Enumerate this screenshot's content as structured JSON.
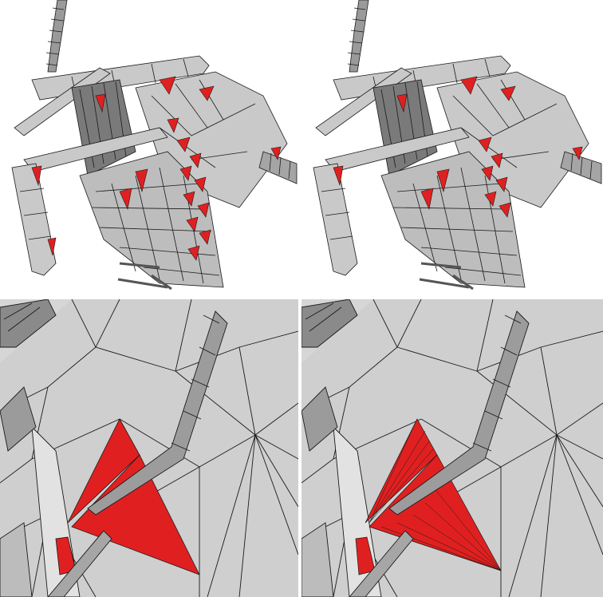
{
  "figure": {
    "panels": [
      {
        "id": "top-left",
        "view": "overview",
        "variant": "before"
      },
      {
        "id": "top-right",
        "view": "overview",
        "variant": "after"
      },
      {
        "id": "bottom-left",
        "view": "closeup",
        "variant": "before"
      },
      {
        "id": "bottom-right",
        "view": "closeup",
        "variant": "after"
      }
    ],
    "colors": {
      "mesh_fill": "#c9c9c9",
      "mesh_dark": "#8f8f8f",
      "wire": "#1a1a1a",
      "highlight": "#e02020",
      "background": "#ffffff"
    }
  }
}
